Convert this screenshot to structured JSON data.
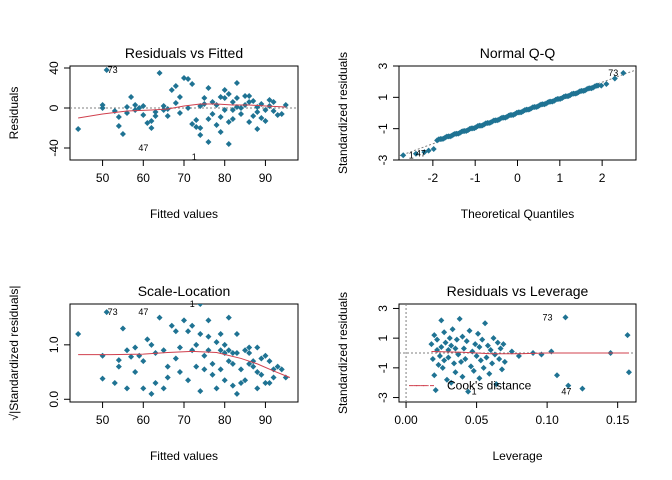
{
  "colors": {
    "point": "#1F7393",
    "smooth": "#D0404E",
    "ref": "#7F7F7F"
  },
  "chart_data": [
    {
      "type": "scatter",
      "title": "Residuals vs Fitted",
      "xlabel": "Fitted values",
      "ylabel": "Residuals",
      "xlim": [
        42,
        98
      ],
      "ylim": [
        -52,
        42
      ],
      "xticks": [
        50,
        60,
        70,
        80,
        90
      ],
      "yticks": [
        -40,
        0,
        40
      ],
      "hline": 0,
      "grid": false,
      "points": [
        [
          44,
          -21
        ],
        [
          50,
          0
        ],
        [
          50,
          3
        ],
        [
          51,
          38
        ],
        [
          53,
          -3
        ],
        [
          54,
          -9
        ],
        [
          54,
          -18
        ],
        [
          55,
          -26
        ],
        [
          56,
          1
        ],
        [
          56,
          -5
        ],
        [
          57,
          11
        ],
        [
          58,
          -2
        ],
        [
          58,
          3
        ],
        [
          59,
          0
        ],
        [
          60,
          2
        ],
        [
          60,
          -7
        ],
        [
          61,
          -15
        ],
        [
          62,
          -13
        ],
        [
          62,
          -20
        ],
        [
          63,
          -4
        ],
        [
          63,
          -8
        ],
        [
          64,
          35
        ],
        [
          65,
          2
        ],
        [
          65,
          -2
        ],
        [
          66,
          -1
        ],
        [
          66,
          -8
        ],
        [
          67,
          18
        ],
        [
          68,
          5
        ],
        [
          68,
          22
        ],
        [
          69,
          -5
        ],
        [
          69,
          11
        ],
        [
          70,
          30
        ],
        [
          71,
          29
        ],
        [
          71,
          0
        ],
        [
          72,
          24
        ],
        [
          72,
          -16
        ],
        [
          73,
          -12
        ],
        [
          73,
          -19
        ],
        [
          74,
          -20
        ],
        [
          74,
          2
        ],
        [
          74,
          -27
        ],
        [
          75,
          4
        ],
        [
          75,
          10
        ],
        [
          76,
          20
        ],
        [
          76,
          -11
        ],
        [
          76,
          -34
        ],
        [
          77,
          6
        ],
        [
          77,
          -6
        ],
        [
          78,
          3
        ],
        [
          78,
          -17
        ],
        [
          79,
          11
        ],
        [
          79,
          -9
        ],
        [
          79,
          -24
        ],
        [
          80,
          10
        ],
        [
          80,
          -2
        ],
        [
          80,
          18
        ],
        [
          81,
          14
        ],
        [
          81,
          -14
        ],
        [
          81,
          -36
        ],
        [
          82,
          6
        ],
        [
          82,
          -2
        ],
        [
          82,
          -11
        ],
        [
          83,
          10
        ],
        [
          83,
          25
        ],
        [
          83,
          1
        ],
        [
          84,
          0
        ],
        [
          84,
          -6
        ],
        [
          85,
          12
        ],
        [
          85,
          3
        ],
        [
          86,
          12
        ],
        [
          86,
          6
        ],
        [
          86,
          -14
        ],
        [
          87,
          7
        ],
        [
          87,
          -8
        ],
        [
          88,
          1
        ],
        [
          88,
          -4
        ],
        [
          88,
          -21
        ],
        [
          89,
          4
        ],
        [
          89,
          -10
        ],
        [
          90,
          -2
        ],
        [
          90,
          -13
        ],
        [
          91,
          8
        ],
        [
          91,
          2
        ],
        [
          92,
          6
        ],
        [
          92,
          -3
        ],
        [
          93,
          -7
        ],
        [
          94,
          -6
        ],
        [
          95,
          3
        ]
      ],
      "smooth": [
        [
          44,
          -10
        ],
        [
          50,
          -6
        ],
        [
          56,
          -3
        ],
        [
          62,
          -2
        ],
        [
          66,
          -1
        ],
        [
          70,
          2
        ],
        [
          74,
          4
        ],
        [
          78,
          4
        ],
        [
          82,
          3
        ],
        [
          86,
          3
        ],
        [
          90,
          2
        ],
        [
          95,
          1
        ]
      ],
      "labels": [
        {
          "text": "73",
          "x": 51,
          "y": 38,
          "dx": 6,
          "dy": 3
        },
        {
          "text": "47",
          "x": 61,
          "y": -40,
          "dx": -4,
          "dy": 3
        },
        {
          "text": "1",
          "x": 73,
          "y": -49,
          "dx": -2,
          "dy": 3
        }
      ]
    },
    {
      "type": "scatter",
      "title": "Normal Q-Q",
      "xlabel": "Theoretical Quantiles",
      "ylabel": "Standardized residuals",
      "xlim": [
        -2.8,
        2.8
      ],
      "ylim": [
        -3,
        3
      ],
      "xticks": [
        -2,
        -1,
        0,
        1,
        2
      ],
      "yticks": [
        -3,
        -1,
        1,
        3
      ],
      "refline": [
        [
          -2.8,
          -2.75
        ],
        [
          2.8,
          2.75
        ]
      ],
      "grid": false,
      "qq": {
        "n": 100,
        "amin": -1.0,
        "amax": 1.0,
        "slope": 0.92,
        "low": [
          [
            -2.7,
            -2.7
          ],
          [
            -2.4,
            -2.6
          ],
          [
            -2.2,
            -2.5
          ],
          [
            -2.1,
            -2.4
          ],
          [
            -1.98,
            -2.3
          ]
        ],
        "high": [
          [
            1.98,
            1.75
          ],
          [
            2.1,
            1.85
          ],
          [
            2.3,
            2.2
          ],
          [
            2.5,
            2.55
          ]
        ]
      },
      "labels": [
        {
          "text": "1",
          "x": -2.7,
          "y": -2.7,
          "dx": 8,
          "dy": 3
        },
        {
          "text": "47",
          "x": -2.4,
          "y": -2.6,
          "dx": 5,
          "dy": 3
        },
        {
          "text": "73",
          "x": 2.5,
          "y": 2.55,
          "dx": -10,
          "dy": 3
        }
      ]
    },
    {
      "type": "scatter",
      "title": "Scale-Location",
      "xlabel": "Fitted values",
      "ylabel": "√|Standardized residuals|",
      "xlim": [
        42,
        98
      ],
      "ylim": [
        -0.05,
        1.75
      ],
      "xticks": [
        50,
        60,
        70,
        80,
        90
      ],
      "yticks": [
        0.0,
        1.0
      ],
      "ytick_labels": [
        "0.0",
        "1.0"
      ],
      "grid": false,
      "points": [
        [
          44,
          1.2
        ],
        [
          50,
          0.38
        ],
        [
          51,
          1.6
        ],
        [
          50,
          0.8
        ],
        [
          53,
          0.3
        ],
        [
          54,
          0.6
        ],
        [
          54,
          0.72
        ],
        [
          55,
          1.3
        ],
        [
          56,
          0.2
        ],
        [
          56,
          0.9
        ],
        [
          57,
          0.78
        ],
        [
          58,
          0.5
        ],
        [
          58,
          0.95
        ],
        [
          59,
          0.8
        ],
        [
          60,
          0.2
        ],
        [
          60,
          0.7
        ],
        [
          61,
          1.1
        ],
        [
          62,
          0.1
        ],
        [
          62,
          1.0
        ],
        [
          63,
          0.3
        ],
        [
          63,
          0.85
        ],
        [
          64,
          1.5
        ],
        [
          65,
          0.2
        ],
        [
          65,
          0.9
        ],
        [
          66,
          0.6
        ],
        [
          66,
          0.4
        ],
        [
          67,
          1.35
        ],
        [
          68,
          0.75
        ],
        [
          68,
          1.25
        ],
        [
          69,
          0.5
        ],
        [
          69,
          0.95
        ],
        [
          70,
          1.45
        ],
        [
          71,
          1.25
        ],
        [
          71,
          0.35
        ],
        [
          72,
          1.35
        ],
        [
          72,
          0.9
        ],
        [
          73,
          0.6
        ],
        [
          73,
          1.0
        ],
        [
          74,
          1.2
        ],
        [
          74,
          0.15
        ],
        [
          74,
          1.75
        ],
        [
          75,
          0.55
        ],
        [
          75,
          0.8
        ],
        [
          76,
          1.15
        ],
        [
          76,
          0.9
        ],
        [
          76,
          1.45
        ],
        [
          77,
          0.65
        ],
        [
          77,
          0.45
        ],
        [
          78,
          0.2
        ],
        [
          78,
          1.05
        ],
        [
          79,
          0.9
        ],
        [
          79,
          0.55
        ],
        [
          79,
          1.2
        ],
        [
          80,
          0.85
        ],
        [
          80,
          0.35
        ],
        [
          80,
          1.0
        ],
        [
          81,
          0.9
        ],
        [
          81,
          0.7
        ],
        [
          81,
          1.5
        ],
        [
          82,
          0.65
        ],
        [
          82,
          0.25
        ],
        [
          82,
          0.85
        ],
        [
          83,
          0.85
        ],
        [
          83,
          1.2
        ],
        [
          83,
          0.1
        ],
        [
          84,
          0.3
        ],
        [
          84,
          0.55
        ],
        [
          85,
          0.9
        ],
        [
          85,
          0.35
        ],
        [
          86,
          0.95
        ],
        [
          86,
          0.65
        ],
        [
          86,
          0.85
        ],
        [
          87,
          0.7
        ],
        [
          87,
          0.6
        ],
        [
          88,
          0.2
        ],
        [
          88,
          0.5
        ],
        [
          88,
          0.95
        ],
        [
          89,
          0.45
        ],
        [
          89,
          0.75
        ],
        [
          90,
          0.3
        ],
        [
          90,
          0.8
        ],
        [
          91,
          0.7
        ],
        [
          91,
          0.3
        ],
        [
          92,
          0.55
        ],
        [
          92,
          0.4
        ],
        [
          93,
          0.6
        ],
        [
          94,
          0.55
        ],
        [
          95,
          0.4
        ]
      ],
      "smooth": [
        [
          44,
          0.82
        ],
        [
          52,
          0.82
        ],
        [
          60,
          0.83
        ],
        [
          66,
          0.86
        ],
        [
          72,
          0.88
        ],
        [
          78,
          0.86
        ],
        [
          84,
          0.75
        ],
        [
          88,
          0.65
        ],
        [
          92,
          0.52
        ],
        [
          96,
          0.4
        ]
      ],
      "labels": [
        {
          "text": "73",
          "x": 51,
          "y": 1.6,
          "dx": 6,
          "dy": 3
        },
        {
          "text": "47",
          "x": 61,
          "y": 1.6,
          "dx": -4,
          "dy": 3
        },
        {
          "text": "1",
          "x": 74,
          "y": 1.75,
          "dx": -8,
          "dy": 3
        }
      ]
    },
    {
      "type": "scatter",
      "title": "Residuals vs Leverage",
      "xlabel": "Leverage",
      "ylabel": "Standardized residuals",
      "xlim": [
        -0.005,
        0.163
      ],
      "ylim": [
        -3.3,
        3.3
      ],
      "xticks": [
        0.0,
        0.05,
        0.1,
        0.15
      ],
      "xtick_labels": [
        "0.00",
        "0.05",
        "0.10",
        "0.15"
      ],
      "yticks": [
        -3,
        -1,
        1,
        3
      ],
      "hline": 0,
      "vline": 0,
      "grid": false,
      "points": [
        [
          0.018,
          0.6
        ],
        [
          0.019,
          -0.4
        ],
        [
          0.02,
          1.2
        ],
        [
          0.02,
          -1.5
        ],
        [
          0.021,
          -2.5
        ],
        [
          0.022,
          0.2
        ],
        [
          0.022,
          0.9
        ],
        [
          0.023,
          -0.8
        ],
        [
          0.024,
          -0.2
        ],
        [
          0.025,
          2.2
        ],
        [
          0.025,
          0.4
        ],
        [
          0.026,
          -1.0
        ],
        [
          0.027,
          1.4
        ],
        [
          0.027,
          -0.5
        ],
        [
          0.028,
          0.7
        ],
        [
          0.029,
          -1.8
        ],
        [
          0.03,
          0.2
        ],
        [
          0.03,
          -0.3
        ],
        [
          0.031,
          1.0
        ],
        [
          0.032,
          -2.0
        ],
        [
          0.032,
          0.5
        ],
        [
          0.033,
          1.6
        ],
        [
          0.034,
          -0.7
        ],
        [
          0.035,
          0.3
        ],
        [
          0.035,
          -1.3
        ],
        [
          0.036,
          0.9
        ],
        [
          0.037,
          -0.1
        ],
        [
          0.038,
          2.3
        ],
        [
          0.039,
          -0.6
        ],
        [
          0.04,
          1.1
        ],
        [
          0.04,
          -1.6
        ],
        [
          0.041,
          0.3
        ],
        [
          0.042,
          -0.4
        ],
        [
          0.043,
          0.8
        ],
        [
          0.044,
          -2.6
        ],
        [
          0.045,
          1.5
        ],
        [
          0.046,
          -0.9
        ],
        [
          0.047,
          0.1
        ],
        [
          0.048,
          -1.2
        ],
        [
          0.049,
          0.6
        ],
        [
          0.05,
          -0.2
        ],
        [
          0.051,
          1.3
        ],
        [
          0.052,
          -1.7
        ],
        [
          0.052,
          0.4
        ],
        [
          0.053,
          -0.5
        ],
        [
          0.054,
          0.9
        ],
        [
          0.055,
          -1.0
        ],
        [
          0.056,
          2.0
        ],
        [
          0.057,
          -0.3
        ],
        [
          0.058,
          0.5
        ],
        [
          0.059,
          -1.4
        ],
        [
          0.06,
          0.2
        ],
        [
          0.061,
          -0.7
        ],
        [
          0.062,
          1.0
        ],
        [
          0.063,
          -0.1
        ],
        [
          0.064,
          -2.1
        ],
        [
          0.065,
          0.7
        ],
        [
          0.066,
          -0.4
        ],
        [
          0.067,
          0.3
        ],
        [
          0.068,
          -1.1
        ],
        [
          0.069,
          0.6
        ],
        [
          0.07,
          -0.6
        ],
        [
          0.075,
          0.1
        ],
        [
          0.08,
          -0.2
        ],
        [
          0.09,
          0.0
        ],
        [
          0.096,
          -0.1
        ],
        [
          0.103,
          0.1
        ],
        [
          0.107,
          -1.5
        ],
        [
          0.113,
          2.4
        ],
        [
          0.115,
          -2.2
        ],
        [
          0.125,
          -2.4
        ],
        [
          0.145,
          0.0
        ],
        [
          0.157,
          1.2
        ],
        [
          0.158,
          -1.3
        ]
      ],
      "smooth": [
        [
          0.018,
          0.1
        ],
        [
          0.04,
          0.05
        ],
        [
          0.06,
          -0.05
        ],
        [
          0.08,
          -0.05
        ],
        [
          0.1,
          0.0
        ],
        [
          0.13,
          0.0
        ],
        [
          0.158,
          0.0
        ]
      ],
      "cooks": [
        [
          0.005,
          -2.2
        ],
        [
          0.016,
          -2.2
        ]
      ],
      "labels": [
        {
          "text": "73",
          "x": 0.113,
          "y": 2.4,
          "dx": -18,
          "dy": 3
        },
        {
          "text": "47",
          "x": 0.125,
          "y": -2.4,
          "dx": -16,
          "dy": 6
        },
        {
          "text": "1",
          "x": 0.044,
          "y": -2.6,
          "dx": 6,
          "dy": 3
        }
      ],
      "legend": "Cook's distance",
      "legend_position": "bottom-left"
    }
  ]
}
